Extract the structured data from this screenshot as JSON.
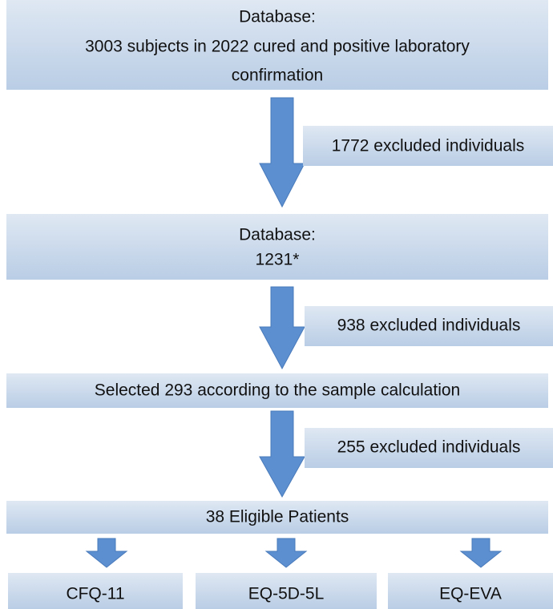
{
  "nodes": [
    {
      "lines": [
        "Database:",
        "3003 subjects in 2022 cured and positive laboratory",
        "confirmation"
      ]
    },
    {
      "lines": [
        "Database:",
        "1231*"
      ]
    },
    {
      "lines": [
        "Selected 293 according to the sample calculation"
      ]
    },
    {
      "lines": [
        "38 Eligible Patients"
      ]
    }
  ],
  "exclusions": [
    "1772 excluded individuals",
    "938 excluded individuals",
    "255 excluded individuals"
  ],
  "outcomes": [
    "CFQ-11",
    "EQ-5D-5L",
    "EQ-EVA"
  ]
}
